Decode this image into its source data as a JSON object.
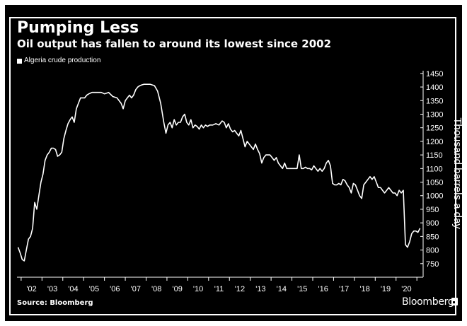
{
  "header": {
    "title": "Pumping Less",
    "subtitle": "Oil output has fallen to around its lowest since 2002"
  },
  "footer": {
    "source": "Source: Bloomberg",
    "brand": "Bloomberg"
  },
  "colors": {
    "background": "#000000",
    "line": "#ffffff",
    "text": "#ffffff"
  },
  "chart_data": {
    "type": "line",
    "title": "Pumping Less",
    "subtitle": "Oil output has fallen to around its lowest since 2002",
    "xlabel": "",
    "ylabel": "Thousand barrels a day",
    "ylim": [
      700,
      1460
    ],
    "xlim": [
      2001.8,
      2021.3
    ],
    "grid": false,
    "legend_position": "top-left",
    "x_tick_values": [
      2002,
      2003,
      2004,
      2005,
      2006,
      2007,
      2008,
      2009,
      2010,
      2011,
      2012,
      2013,
      2014,
      2015,
      2016,
      2017,
      2018,
      2019,
      2020
    ],
    "x_tick_labels": [
      "'02",
      "'03",
      "'04",
      "'05",
      "'06",
      "'07",
      "'08",
      "'09",
      "'10",
      "'11",
      "'12",
      "'13",
      "'14",
      "'15",
      "'16",
      "'17",
      "'18",
      "'19",
      "'20"
    ],
    "y_ticks": [
      750,
      800,
      850,
      900,
      950,
      1000,
      1050,
      1100,
      1150,
      1200,
      1250,
      1300,
      1350,
      1400,
      1450
    ],
    "series": [
      {
        "name": "Algeria crude production",
        "color": "#ffffff",
        "x": [
          2001.85,
          2001.95,
          2002.05,
          2002.15,
          2002.25,
          2002.35,
          2002.45,
          2002.55,
          2002.65,
          2002.75,
          2002.85,
          2002.95,
          2003.05,
          2003.15,
          2003.25,
          2003.35,
          2003.45,
          2003.55,
          2003.65,
          2003.75,
          2003.85,
          2003.95,
          2004.05,
          2004.15,
          2004.25,
          2004.35,
          2004.45,
          2004.55,
          2004.65,
          2004.75,
          2004.85,
          2004.95,
          2005.05,
          2005.15,
          2005.25,
          2005.4,
          2005.55,
          2005.7,
          2005.85,
          2006.0,
          2006.2,
          2006.4,
          2006.6,
          2006.8,
          2006.9,
          2007.0,
          2007.1,
          2007.2,
          2007.3,
          2007.4,
          2007.5,
          2007.6,
          2007.7,
          2007.8,
          2007.9,
          2008.0,
          2008.2,
          2008.4,
          2008.55,
          2008.7,
          2008.85,
          2008.95,
          2009.05,
          2009.15,
          2009.25,
          2009.35,
          2009.45,
          2009.55,
          2009.65,
          2009.75,
          2009.85,
          2009.95,
          2010.05,
          2010.15,
          2010.25,
          2010.35,
          2010.45,
          2010.55,
          2010.65,
          2010.75,
          2010.85,
          2010.95,
          2011.05,
          2011.2,
          2011.35,
          2011.5,
          2011.65,
          2011.75,
          2011.85,
          2011.95,
          2012.05,
          2012.15,
          2012.25,
          2012.35,
          2012.45,
          2012.55,
          2012.65,
          2012.75,
          2012.85,
          2012.95,
          2013.05,
          2013.15,
          2013.25,
          2013.35,
          2013.45,
          2013.55,
          2013.65,
          2013.75,
          2013.85,
          2013.95,
          2014.05,
          2014.15,
          2014.25,
          2014.35,
          2014.45,
          2014.55,
          2014.65,
          2014.75,
          2014.85,
          2014.95,
          2015.05,
          2015.15,
          2015.25,
          2015.35,
          2015.45,
          2015.55,
          2015.65,
          2015.75,
          2015.85,
          2015.95,
          2016.05,
          2016.15,
          2016.25,
          2016.35,
          2016.45,
          2016.55,
          2016.65,
          2016.75,
          2016.85,
          2016.95,
          2017.05,
          2017.15,
          2017.25,
          2017.35,
          2017.45,
          2017.55,
          2017.65,
          2017.75,
          2017.85,
          2017.95,
          2018.05,
          2018.15,
          2018.25,
          2018.35,
          2018.45,
          2018.55,
          2018.65,
          2018.75,
          2018.85,
          2018.95,
          2019.05,
          2019.15,
          2019.25,
          2019.35,
          2019.45,
          2019.55,
          2019.65,
          2019.75,
          2019.85,
          2019.95,
          2020.05,
          2020.15,
          2020.25,
          2020.35,
          2020.45,
          2020.55,
          2020.65,
          2020.75,
          2020.85,
          2020.95,
          2021.05,
          2021.15
        ],
        "values": [
          810,
          790,
          765,
          760,
          800,
          840,
          850,
          880,
          975,
          950,
          1000,
          1050,
          1080,
          1130,
          1150,
          1160,
          1175,
          1175,
          1170,
          1145,
          1150,
          1160,
          1210,
          1240,
          1265,
          1280,
          1290,
          1270,
          1320,
          1340,
          1360,
          1360,
          1360,
          1370,
          1375,
          1380,
          1380,
          1380,
          1380,
          1375,
          1380,
          1365,
          1360,
          1340,
          1320,
          1350,
          1360,
          1370,
          1360,
          1370,
          1390,
          1400,
          1405,
          1408,
          1410,
          1410,
          1410,
          1405,
          1385,
          1340,
          1270,
          1230,
          1260,
          1270,
          1250,
          1280,
          1260,
          1270,
          1270,
          1290,
          1300,
          1270,
          1260,
          1280,
          1250,
          1260,
          1255,
          1245,
          1260,
          1250,
          1260,
          1255,
          1260,
          1260,
          1265,
          1260,
          1275,
          1270,
          1250,
          1265,
          1245,
          1235,
          1240,
          1230,
          1220,
          1240,
          1210,
          1180,
          1200,
          1190,
          1180,
          1170,
          1190,
          1170,
          1155,
          1120,
          1140,
          1150,
          1150,
          1150,
          1140,
          1130,
          1140,
          1120,
          1110,
          1100,
          1120,
          1100,
          1100,
          1100,
          1100,
          1100,
          1100,
          1150,
          1100,
          1100,
          1105,
          1100,
          1100,
          1095,
          1110,
          1100,
          1090,
          1100,
          1090,
          1100,
          1120,
          1130,
          1110,
          1045,
          1040,
          1040,
          1045,
          1040,
          1060,
          1055,
          1040,
          1030,
          1010,
          1045,
          1040,
          1020,
          1000,
          990,
          1040,
          1050,
          1060,
          1070,
          1060,
          1070,
          1050,
          1030,
          1030,
          1020,
          1010,
          1020,
          1030,
          1020,
          1010,
          1010,
          1000,
          1020,
          1010,
          1020,
          820,
          810,
          830,
          860,
          870,
          870,
          865,
          880
        ]
      }
    ]
  }
}
